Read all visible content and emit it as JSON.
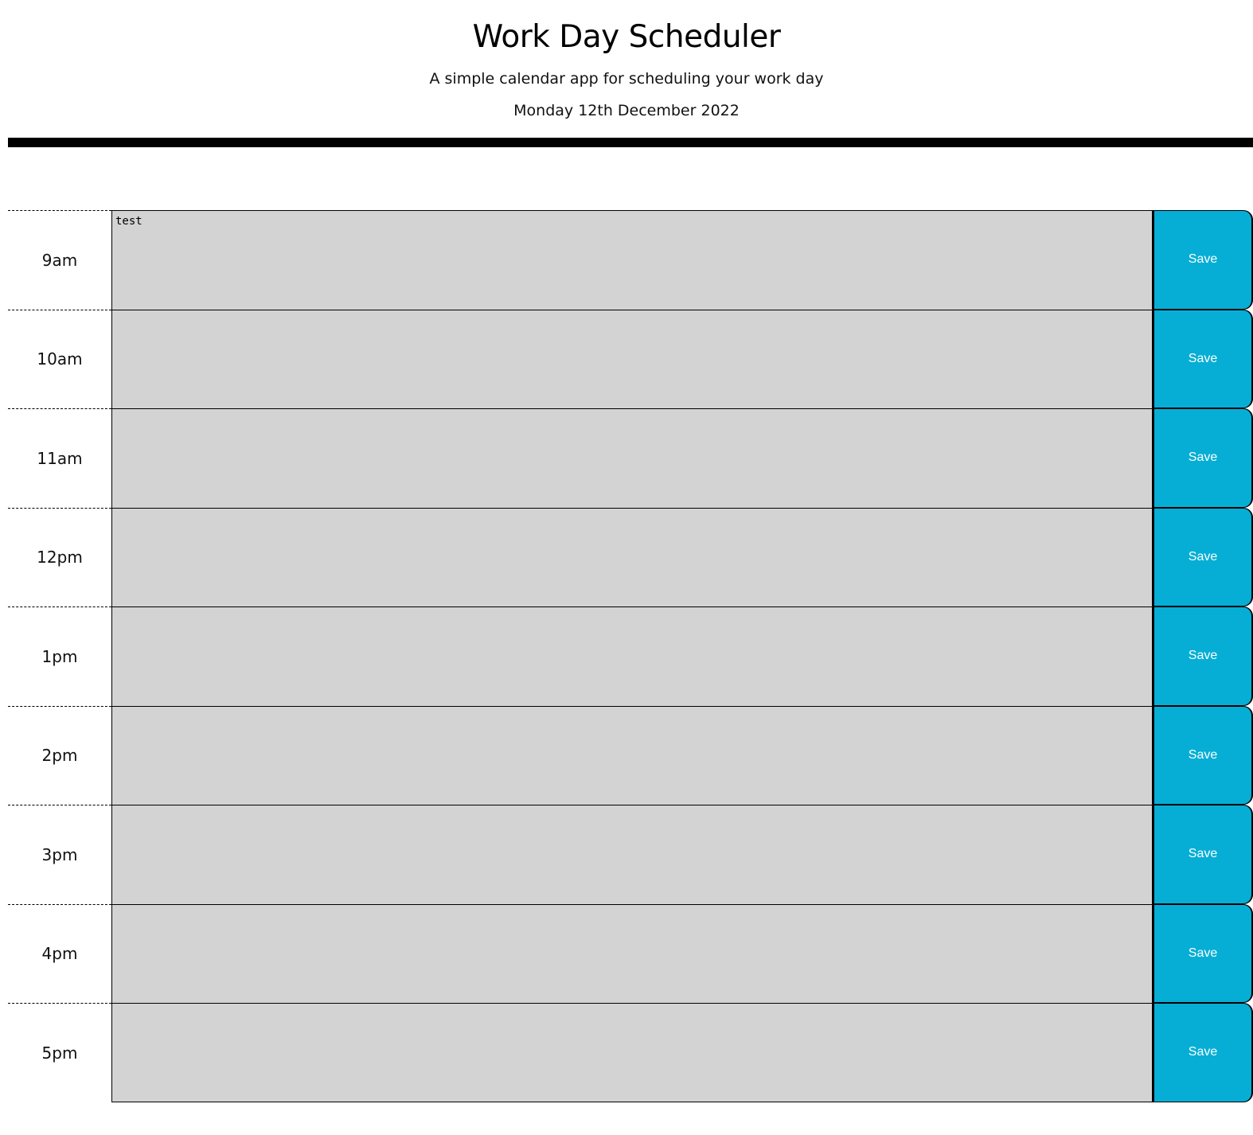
{
  "header": {
    "title": "Work Day Scheduler",
    "subtitle": "A simple calendar app for scheduling your work day",
    "current_day": "Monday 12th December 2022"
  },
  "timeblocks": [
    {
      "hour": "9am",
      "text": "test",
      "save_label": "Save"
    },
    {
      "hour": "10am",
      "text": "",
      "save_label": "Save"
    },
    {
      "hour": "11am",
      "text": "",
      "save_label": "Save"
    },
    {
      "hour": "12pm",
      "text": "",
      "save_label": "Save"
    },
    {
      "hour": "1pm",
      "text": "",
      "save_label": "Save"
    },
    {
      "hour": "2pm",
      "text": "",
      "save_label": "Save"
    },
    {
      "hour": "3pm",
      "text": "",
      "save_label": "Save"
    },
    {
      "hour": "4pm",
      "text": "",
      "save_label": "Save"
    },
    {
      "hour": "5pm",
      "text": "",
      "save_label": "Save"
    }
  ],
  "colors": {
    "past_block": "#d3d3d3",
    "save_button": "#06aed5",
    "save_text": "#ffffff",
    "rule": "#000000"
  }
}
